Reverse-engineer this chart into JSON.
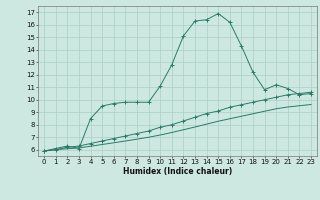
{
  "title": "",
  "xlabel": "Humidex (Indice chaleur)",
  "ylabel": "",
  "background_color": "#cde8e0",
  "grid_color": "#aacfc7",
  "line_color": "#2a7a6a",
  "xlim": [
    -0.5,
    23.5
  ],
  "ylim": [
    5.5,
    17.5
  ],
  "xticks": [
    0,
    1,
    2,
    3,
    4,
    5,
    6,
    7,
    8,
    9,
    10,
    11,
    12,
    13,
    14,
    15,
    16,
    17,
    18,
    19,
    20,
    21,
    22,
    23
  ],
  "yticks": [
    6,
    7,
    8,
    9,
    10,
    11,
    12,
    13,
    14,
    15,
    16,
    17
  ],
  "series1_x": [
    0,
    1,
    2,
    3,
    4,
    5,
    6,
    7,
    8,
    9,
    10,
    11,
    12,
    13,
    14,
    15,
    16,
    17,
    18,
    19,
    20,
    21,
    22,
    23
  ],
  "series1_y": [
    5.9,
    6.1,
    6.3,
    6.1,
    8.5,
    9.5,
    9.7,
    9.8,
    9.8,
    9.8,
    11.1,
    12.8,
    15.1,
    16.3,
    16.4,
    16.9,
    16.2,
    14.3,
    12.2,
    10.8,
    11.2,
    10.9,
    10.4,
    10.5
  ],
  "series2_x": [
    0,
    1,
    2,
    3,
    4,
    5,
    6,
    7,
    8,
    9,
    10,
    11,
    12,
    13,
    14,
    15,
    16,
    17,
    18,
    19,
    20,
    21,
    22,
    23
  ],
  "series2_y": [
    5.9,
    6.0,
    6.2,
    6.3,
    6.5,
    6.7,
    6.9,
    7.1,
    7.3,
    7.5,
    7.8,
    8.0,
    8.3,
    8.6,
    8.9,
    9.1,
    9.4,
    9.6,
    9.8,
    10.0,
    10.2,
    10.4,
    10.5,
    10.6
  ],
  "series3_x": [
    0,
    1,
    2,
    3,
    4,
    5,
    6,
    7,
    8,
    9,
    10,
    11,
    12,
    13,
    14,
    15,
    16,
    17,
    18,
    19,
    20,
    21,
    22,
    23
  ],
  "series3_y": [
    5.9,
    6.02,
    6.08,
    6.15,
    6.28,
    6.42,
    6.56,
    6.7,
    6.85,
    7.0,
    7.18,
    7.38,
    7.6,
    7.82,
    8.05,
    8.28,
    8.48,
    8.68,
    8.88,
    9.08,
    9.28,
    9.42,
    9.52,
    9.62
  ],
  "tick_fontsize": 5,
  "xlabel_fontsize": 5.5
}
